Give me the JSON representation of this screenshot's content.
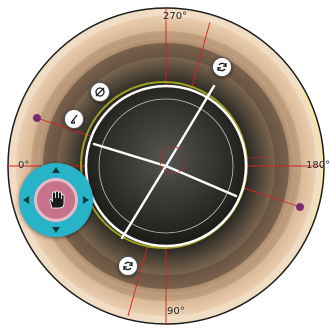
{
  "ring": {
    "labels": {
      "top": "270°",
      "right": "180°",
      "bottom": "90°",
      "left": "0°"
    }
  },
  "icons": {
    "rotate_top": "rotate-icon",
    "rotate_bottom": "rotate-icon",
    "no_symbol": "diameter-icon",
    "angle": "angle-icon",
    "nav_hand": "hand-icon"
  },
  "colors": {
    "nav_outer": "#27b4c8",
    "nav_inner": "#c6728a",
    "crosshair": "#d42020",
    "marker": "#7a2a6e",
    "guide_ring": "#ffffff",
    "lens_edge": "#a0a020"
  }
}
